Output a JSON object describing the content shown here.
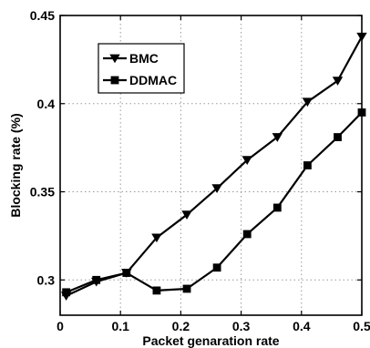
{
  "chart_data": {
    "type": "line",
    "title": "",
    "xlabel": "Packet genaration rate",
    "ylabel": "Blocking rate (%)",
    "xlim": [
      0,
      0.5
    ],
    "ylim": [
      0.28,
      0.45
    ],
    "xticks": [
      "0",
      "0.1",
      "0.2",
      "0.3",
      "0.4",
      "0.5"
    ],
    "yticks": [
      "0.3",
      "0.35",
      "0.4",
      "0.45"
    ],
    "grid": true,
    "legend_position": "top-left",
    "x": [
      0.01,
      0.06,
      0.11,
      0.16,
      0.21,
      0.26,
      0.31,
      0.36,
      0.41,
      0.46,
      0.5
    ],
    "series": [
      {
        "name": "BMC",
        "marker": "triangle-down",
        "color": "#000000",
        "values": [
          0.291,
          0.299,
          0.304,
          0.324,
          0.337,
          0.352,
          0.368,
          0.381,
          0.401,
          0.413,
          0.438
        ]
      },
      {
        "name": "DDMAC",
        "marker": "square",
        "color": "#000000",
        "values": [
          0.293,
          0.3,
          0.304,
          0.294,
          0.295,
          0.307,
          0.326,
          0.341,
          0.365,
          0.381,
          0.395
        ]
      }
    ]
  }
}
